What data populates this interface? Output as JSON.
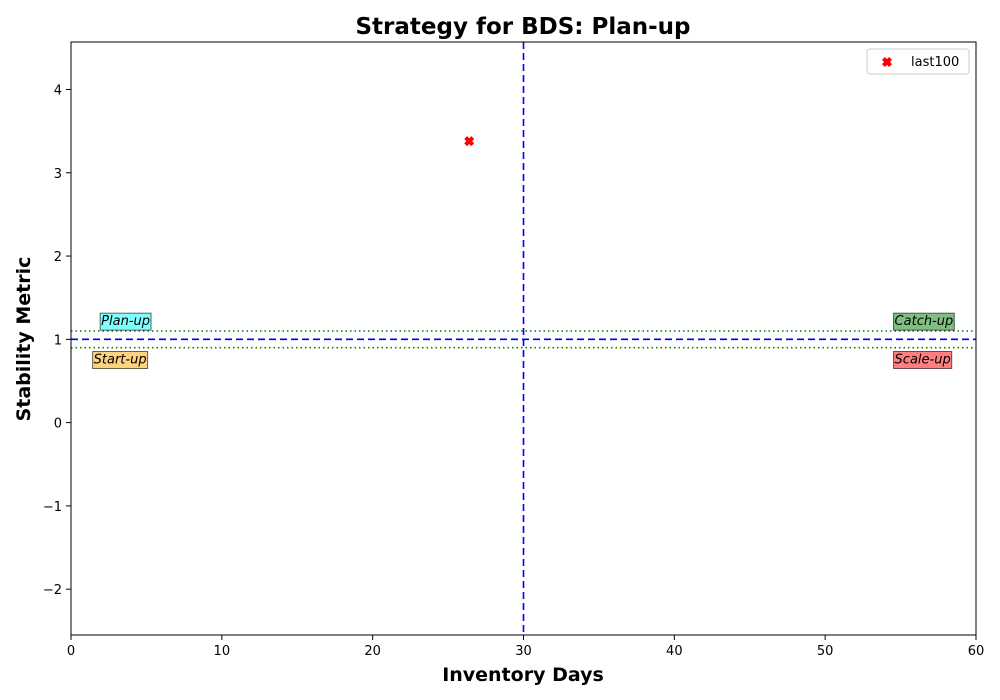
{
  "chart_data": {
    "type": "scatter",
    "title": "Strategy for BDS: Plan-up",
    "xlabel": "Inventory Days",
    "ylabel": "Stability Metric",
    "xlim": [
      0,
      60
    ],
    "ylim": [
      -2.55,
      4.57
    ],
    "xticks": [
      0,
      10,
      20,
      30,
      40,
      50,
      60
    ],
    "yticks": [
      -2,
      -1,
      0,
      1,
      2,
      3,
      4
    ],
    "grid": false,
    "legend_position": "top-right",
    "series": [
      {
        "name": "last100",
        "marker": "x-filled",
        "color": "#ff0000",
        "points": [
          {
            "x": 26.4,
            "y": 3.38
          }
        ]
      }
    ],
    "reference_lines": [
      {
        "orientation": "vertical",
        "value": 30,
        "style": "dashed",
        "color": "#0000ff"
      },
      {
        "orientation": "horizontal",
        "value": 1,
        "style": "dashed",
        "color": "#0000ff"
      },
      {
        "orientation": "horizontal",
        "value": 1.1,
        "style": "dotted",
        "color": "#008000"
      },
      {
        "orientation": "horizontal",
        "value": 0.9,
        "style": "dotted",
        "color": "#008000"
      }
    ],
    "annotations": [
      {
        "text": "Plan-up",
        "x": 2,
        "y": 1.23,
        "bg": "#00ffff"
      },
      {
        "text": "Start-up",
        "x": 1.5,
        "y": 0.77,
        "bg": "#ffa500"
      },
      {
        "text": "Catch-up",
        "x": 54.6,
        "y": 1.23,
        "bg": "#008000"
      },
      {
        "text": "Scale-up",
        "x": 54.6,
        "y": 0.77,
        "bg": "#ff0000"
      }
    ]
  }
}
